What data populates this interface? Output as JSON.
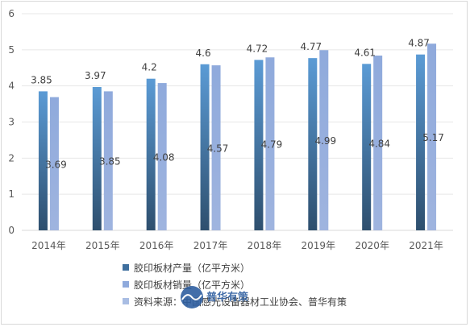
{
  "chart_data": {
    "type": "bar",
    "categories": [
      "2014年",
      "2015年",
      "2016年",
      "2017年",
      "2018年",
      "2019年",
      "2020年",
      "2021年"
    ],
    "series": [
      {
        "name": "胶印板材产量（亿平方米）",
        "values": [
          3.85,
          3.97,
          4.2,
          4.6,
          4.72,
          4.77,
          4.61,
          4.87
        ],
        "color_top": "#5b9bd5",
        "color_bottom": "#2e4f6e"
      },
      {
        "name": "胶印板材销量（亿平方米）",
        "values": [
          3.69,
          3.85,
          4.08,
          4.57,
          4.79,
          4.99,
          4.84,
          5.17
        ],
        "color": "#8faadc"
      }
    ],
    "ylim": [
      0,
      6
    ],
    "yticks": [
      "0",
      "1",
      "2",
      "3",
      "4",
      "5",
      "6"
    ],
    "grid": "horizontal",
    "legend_position": "bottom-center"
  },
  "source_note": "资料来源：中国感光设备器材工业协会、普华有策",
  "watermark": {
    "text": "普华有策"
  }
}
